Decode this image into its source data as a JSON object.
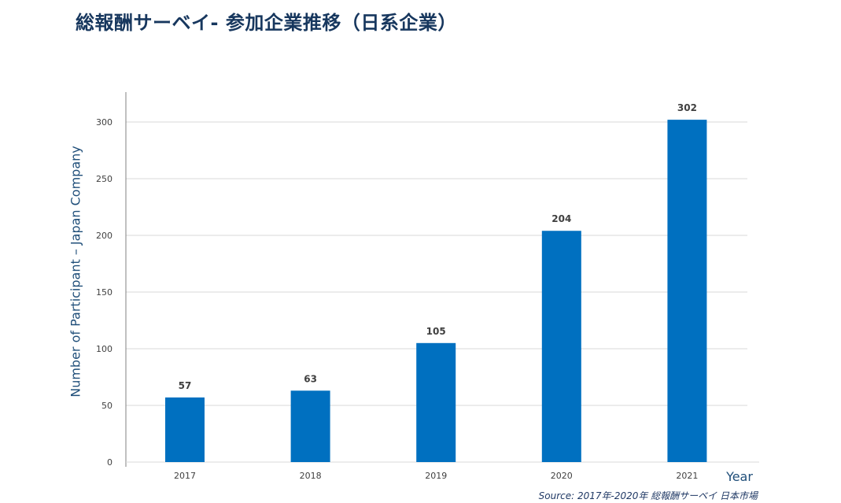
{
  "title": "総報酬サーベイ- 参加企業推移（日系企業）",
  "source": "Source:  2017年-2020年  総報酬サーベイ  日本市場",
  "chart_data": {
    "type": "bar",
    "title": "総報酬サーベイ- 参加企業推移（日系企業）",
    "categories": [
      "2017",
      "2018",
      "2019",
      "2020",
      "2021"
    ],
    "values": [
      57,
      63,
      105,
      204,
      302
    ],
    "data_labels": [
      "57",
      "63",
      "105",
      "204",
      "302"
    ],
    "xlabel": "Year",
    "ylabel": "Number of Participant – Japan Company",
    "ylim": [
      0,
      330
    ],
    "yticks": [
      0,
      50,
      100,
      150,
      200,
      250,
      300
    ],
    "grid": true,
    "legend": "none",
    "colors": {
      "bar": "#0070c0",
      "grid": "#d9d9d9",
      "axis": "#808080",
      "title": "#17375e",
      "ylabel": "#1f4e79"
    }
  }
}
